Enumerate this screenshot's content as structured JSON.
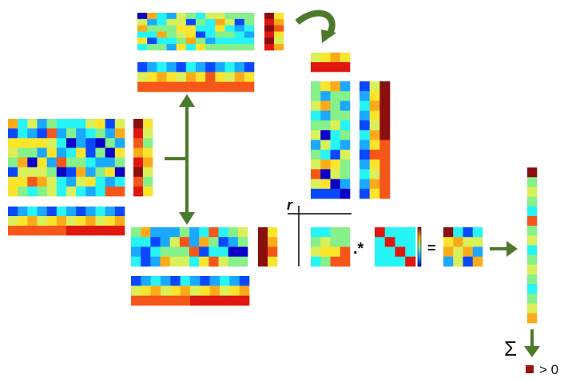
{
  "labels": {
    "r": "r",
    "times": ".*",
    "equals": "=",
    "sigma": "Σ",
    "legend": "> 0"
  },
  "colors": {
    "palette": [
      "#0a00c8",
      "#0a48ff",
      "#1ba8ff",
      "#27f5f5",
      "#86f08a",
      "#d9f05a",
      "#fbe52c",
      "#fbab1a",
      "#f5561a",
      "#e0170f",
      "#8a0f0f"
    ],
    "arrow": "#4d7a2a",
    "line": "#000000",
    "legend_swatch": "#9b1010"
  }
}
